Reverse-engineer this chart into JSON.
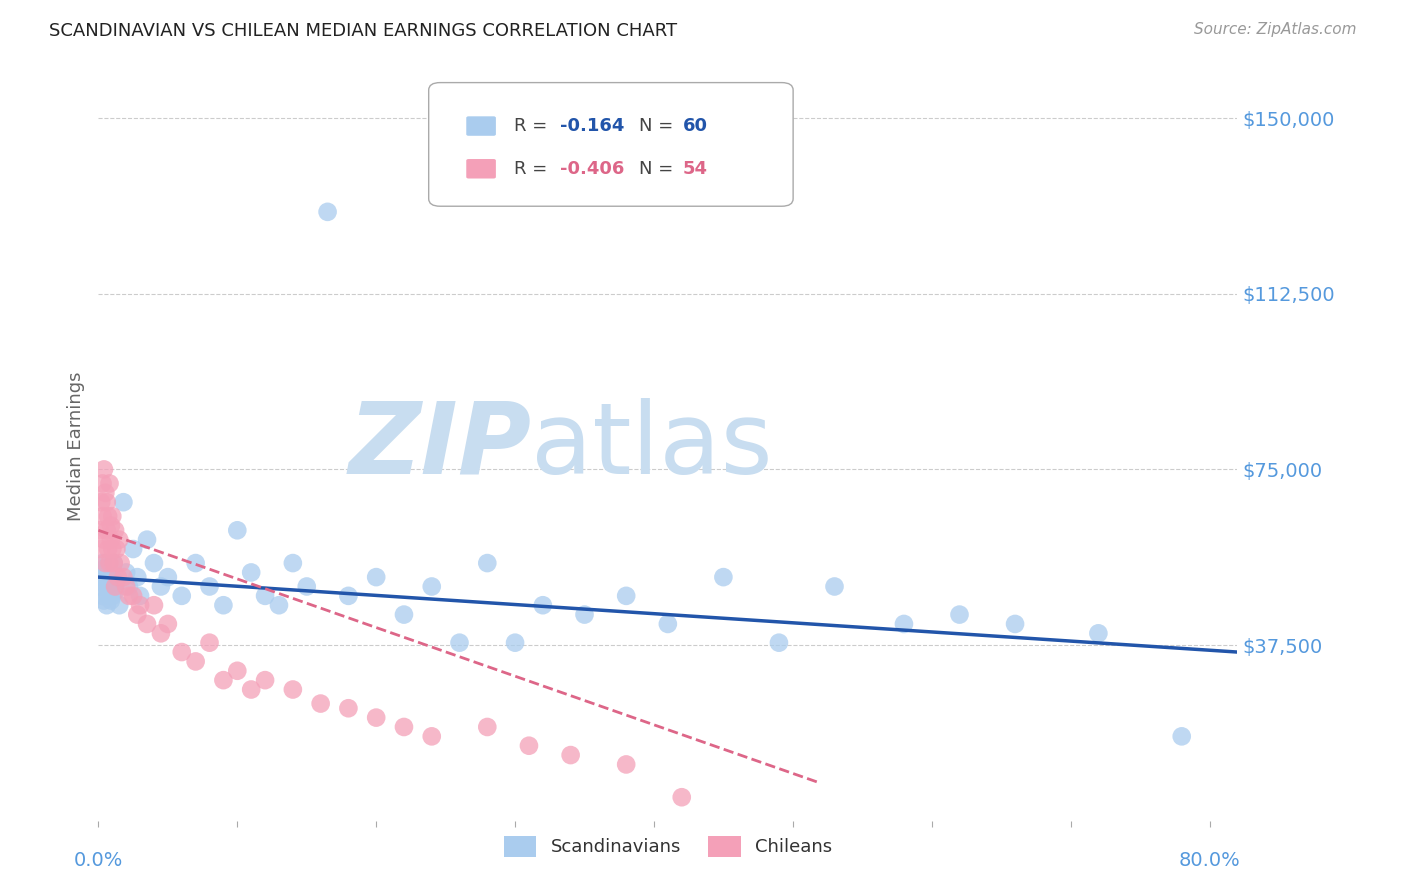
{
  "title": "SCANDINAVIAN VS CHILEAN MEDIAN EARNINGS CORRELATION CHART",
  "source": "Source: ZipAtlas.com",
  "ylabel": "Median Earnings",
  "ymin": 0,
  "ymax": 160000,
  "xmin": 0.0,
  "xmax": 0.82,
  "background_color": "#ffffff",
  "grid_color": "#cccccc",
  "scatter_blue_color": "#aaccee",
  "scatter_pink_color": "#f4a0b8",
  "line_blue_color": "#2255aa",
  "line_pink_color": "#dd6688",
  "axis_label_color": "#5599dd",
  "legend_label_blue": "Scandinavians",
  "legend_label_pink": "Chileans",
  "watermark_zip": "ZIP",
  "watermark_atlas": "atlas",
  "watermark_color": "#c8ddf0",
  "scandinavian_x": [
    0.001,
    0.002,
    0.003,
    0.003,
    0.004,
    0.004,
    0.005,
    0.005,
    0.006,
    0.006,
    0.007,
    0.007,
    0.008,
    0.009,
    0.01,
    0.01,
    0.011,
    0.012,
    0.013,
    0.015,
    0.018,
    0.02,
    0.022,
    0.025,
    0.028,
    0.03,
    0.035,
    0.04,
    0.045,
    0.05,
    0.06,
    0.07,
    0.08,
    0.09,
    0.1,
    0.11,
    0.12,
    0.13,
    0.14,
    0.15,
    0.165,
    0.18,
    0.2,
    0.22,
    0.24,
    0.26,
    0.28,
    0.3,
    0.32,
    0.35,
    0.38,
    0.41,
    0.45,
    0.49,
    0.53,
    0.58,
    0.62,
    0.66,
    0.72,
    0.78
  ],
  "scandinavian_y": [
    50000,
    52000,
    55000,
    48000,
    53000,
    47000,
    51000,
    54000,
    50000,
    46000,
    48000,
    53000,
    50000,
    47000,
    52000,
    48000,
    55000,
    49000,
    51000,
    46000,
    68000,
    53000,
    50000,
    58000,
    52000,
    48000,
    60000,
    55000,
    50000,
    52000,
    48000,
    55000,
    50000,
    46000,
    62000,
    53000,
    48000,
    46000,
    55000,
    50000,
    130000,
    48000,
    52000,
    44000,
    50000,
    38000,
    55000,
    38000,
    46000,
    44000,
    48000,
    42000,
    52000,
    38000,
    50000,
    42000,
    44000,
    42000,
    40000,
    18000
  ],
  "scandinavian_line_x": [
    0.0,
    0.82
  ],
  "scandinavian_line_y": [
    52000,
    36000
  ],
  "chilean_x": [
    0.001,
    0.002,
    0.002,
    0.003,
    0.003,
    0.004,
    0.004,
    0.005,
    0.005,
    0.006,
    0.006,
    0.007,
    0.007,
    0.008,
    0.008,
    0.009,
    0.009,
    0.01,
    0.01,
    0.011,
    0.012,
    0.012,
    0.013,
    0.014,
    0.015,
    0.016,
    0.018,
    0.02,
    0.022,
    0.025,
    0.028,
    0.03,
    0.035,
    0.04,
    0.045,
    0.05,
    0.06,
    0.07,
    0.08,
    0.09,
    0.1,
    0.11,
    0.12,
    0.14,
    0.16,
    0.18,
    0.2,
    0.22,
    0.24,
    0.28,
    0.31,
    0.34,
    0.38,
    0.42
  ],
  "chilean_y": [
    62000,
    58000,
    68000,
    72000,
    65000,
    75000,
    60000,
    70000,
    55000,
    68000,
    62000,
    65000,
    58000,
    72000,
    55000,
    60000,
    63000,
    65000,
    58000,
    55000,
    62000,
    50000,
    58000,
    52000,
    60000,
    55000,
    52000,
    50000,
    48000,
    48000,
    44000,
    46000,
    42000,
    46000,
    40000,
    42000,
    36000,
    34000,
    38000,
    30000,
    32000,
    28000,
    30000,
    28000,
    25000,
    24000,
    22000,
    20000,
    18000,
    20000,
    16000,
    14000,
    12000,
    5000
  ],
  "chilean_line_x": [
    0.0,
    0.52
  ],
  "chilean_line_y": [
    62000,
    8000
  ]
}
